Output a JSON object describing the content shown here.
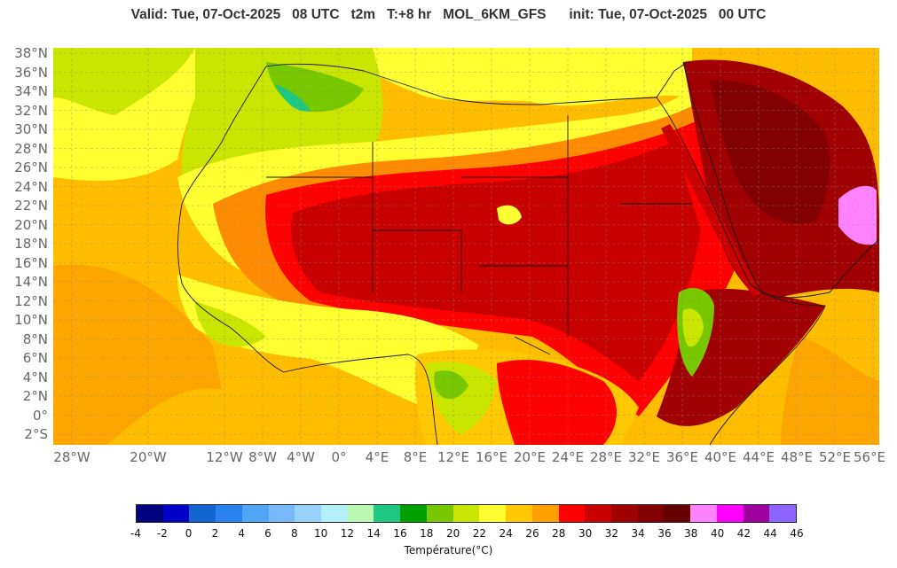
{
  "title": "Valid: Tue, 07-Oct-2025   08 UTC   t2m   T:+8 hr   MOL_6KM_GFS      init: Tue, 07-Oct-2025   00 UTC",
  "latitude_labels": [
    "38°N",
    "36°N",
    "34°N",
    "32°N",
    "30°N",
    "28°N",
    "26°N",
    "24°N",
    "22°N",
    "20°N",
    "18°N",
    "16°N",
    "14°N",
    "12°N",
    "10°N",
    "8°N",
    "6°N",
    "4°N",
    "2°N",
    "0°",
    "2°S"
  ],
  "longitude_labels": [
    "28°W",
    "20°W",
    "12°W",
    "8°W",
    "4°W",
    "0°",
    "4°E",
    "8°E",
    "12°E",
    "16°E",
    "20°E",
    "24°E",
    "28°E",
    "32°E",
    "36°E",
    "40°E",
    "44°E",
    "48°E",
    "52°E",
    "56°E"
  ],
  "colorbar": {
    "label": "Température(°C)",
    "ticks": [
      "-4",
      "-2",
      "0",
      "2",
      "4",
      "6",
      "8",
      "10",
      "12",
      "14",
      "16",
      "18",
      "20",
      "22",
      "24",
      "26",
      "28",
      "30",
      "32",
      "34",
      "36",
      "38",
      "40",
      "42",
      "44",
      "46"
    ],
    "colors": [
      "#00007f",
      "#0000c8",
      "#1464d2",
      "#2882f0",
      "#50a5f5",
      "#78b9fa",
      "#96d2fa",
      "#b4f0fa",
      "#b9f9b0",
      "#1ec882",
      "#00a000",
      "#78c800",
      "#c8e600",
      "#ffff32",
      "#ffc800",
      "#ffa000",
      "#ff0000",
      "#c80000",
      "#a00000",
      "#820000",
      "#640000",
      "#ff82ff",
      "#ff00ff",
      "#a000a0",
      "#8c64ff"
    ]
  },
  "map_colors": {
    "ocean": "#ffbd00",
    "ocean_warm": "#ffa500",
    "land_mild": "#ffff32",
    "land_cool": "#c8e600",
    "land_green": "#78c800",
    "land_lush": "#1ec882",
    "hot_orange": "#ff8c00",
    "hot_red": "#ff0000",
    "very_hot": "#c80000",
    "extreme": "#a00000",
    "extreme_dark": "#820000",
    "pink": "#ff82ff"
  }
}
